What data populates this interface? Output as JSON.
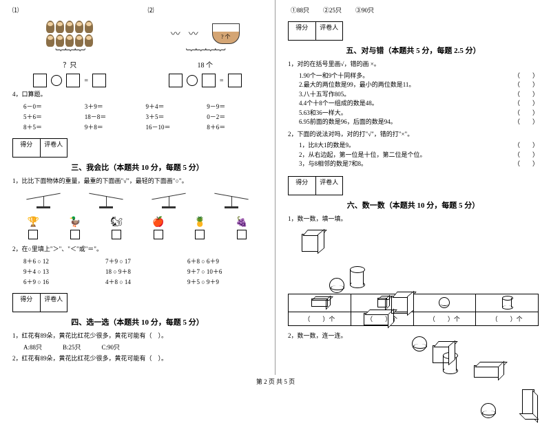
{
  "left": {
    "fig1": {
      "num": "⑴",
      "label": "？只"
    },
    "fig2": {
      "num": "⑵",
      "label": "18 个"
    },
    "q4_title": "4，口算题。",
    "arith": [
      "6－0＝",
      "3＋9＝",
      "9＋4＝",
      "9－9＝",
      "5＋6＝",
      "18－8＝",
      "3＋5＝",
      "0－2＝",
      "8＋5＝",
      "9＋8＝",
      "16－10＝",
      "8＋6＝"
    ],
    "score": {
      "a": "得分",
      "b": "评卷人"
    },
    "sec3": "三、我会比（本题共 10 分，每题 5 分）",
    "s3q1": "1，比比下面物体的重量，最重的下面画\"√\"，最轻的下面画\"○\"。",
    "s3q2": "2，在○里填上\"＞\"、\"＜\"或\"＝\"。",
    "ineq": [
      "8＋6 ○ 12",
      "7＋9 ○ 17",
      "6＋8 ○ 6＋9",
      "9＋4 ○ 13",
      "18 ○ 9＋8",
      "9＋7 ○ 10＋6",
      "6＋9 ○ 16",
      "4＋8 ○ 14",
      "9＋5 ○ 9＋9"
    ],
    "sec4": "四、选一选（本题共 10 分，每题 5 分）",
    "s4q1": "1，红花有89朵，黄花比红花少很多，黄花可能有（　）。",
    "s4q1_opts": {
      "a": "A:88只",
      "b": "B:25只",
      "c": "C:90只"
    },
    "s4q2": "2，红花有89朵，黄花比红花少很多，黄花可能有（　）。"
  },
  "right": {
    "s4q2_opts": {
      "a": "①88只",
      "b": "②25只",
      "c": "③90只"
    },
    "score": {
      "a": "得分",
      "b": "评卷人"
    },
    "sec5": "五、对与错（本题共 5 分，每题 2.5 分）",
    "s5q1": "1，对的在括号里画√，错的画 ×。",
    "tf1": [
      "1.90个一和9个十同样多。",
      "2.最大的两位数是99，最小的两位数是11。",
      "3.八十五写作805。",
      "4.4个十8个一组成的数是48。",
      "5.63和36一样大。",
      "6.95前面的数是96，后面的数是94。"
    ],
    "s5q2": "2，下面的说法对吗，对的打\"√\"，错的打\"×\"。",
    "tf2": [
      "1，比8大1的数是9。",
      "2，从右边起，第一位是十位，第二位是个位。",
      "3，与8相邻的数是7和8。"
    ],
    "sec6": "六、数一数（本题共 10 分，每题 5 分）",
    "s6q1": "1，数一数，填一填。",
    "count_blank": "（　　）个",
    "s6q2": "2，数一数，连一连。"
  },
  "footer": "第 2 页 共 5 页"
}
